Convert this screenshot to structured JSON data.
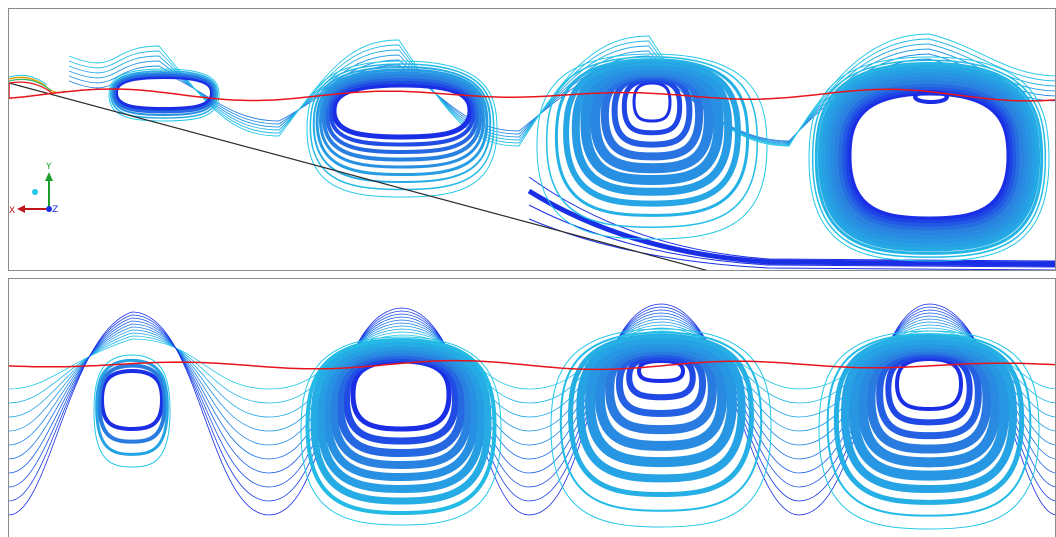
{
  "triad": {
    "x_label": "X",
    "y_label": "Y",
    "z_label": "Z"
  },
  "colors": {
    "free_surface": "#e8141c",
    "streamline_core": "#1a2ee6",
    "streamline_mid": "#2a7fe0",
    "streamline_outer": "#22c8e8",
    "bed": "#2b2b2b",
    "axis_x": "#c0141c",
    "axis_y": "#1c9e2c",
    "axis_z": "#1a2ee6",
    "panel_border": "#8a8a8a"
  }
}
